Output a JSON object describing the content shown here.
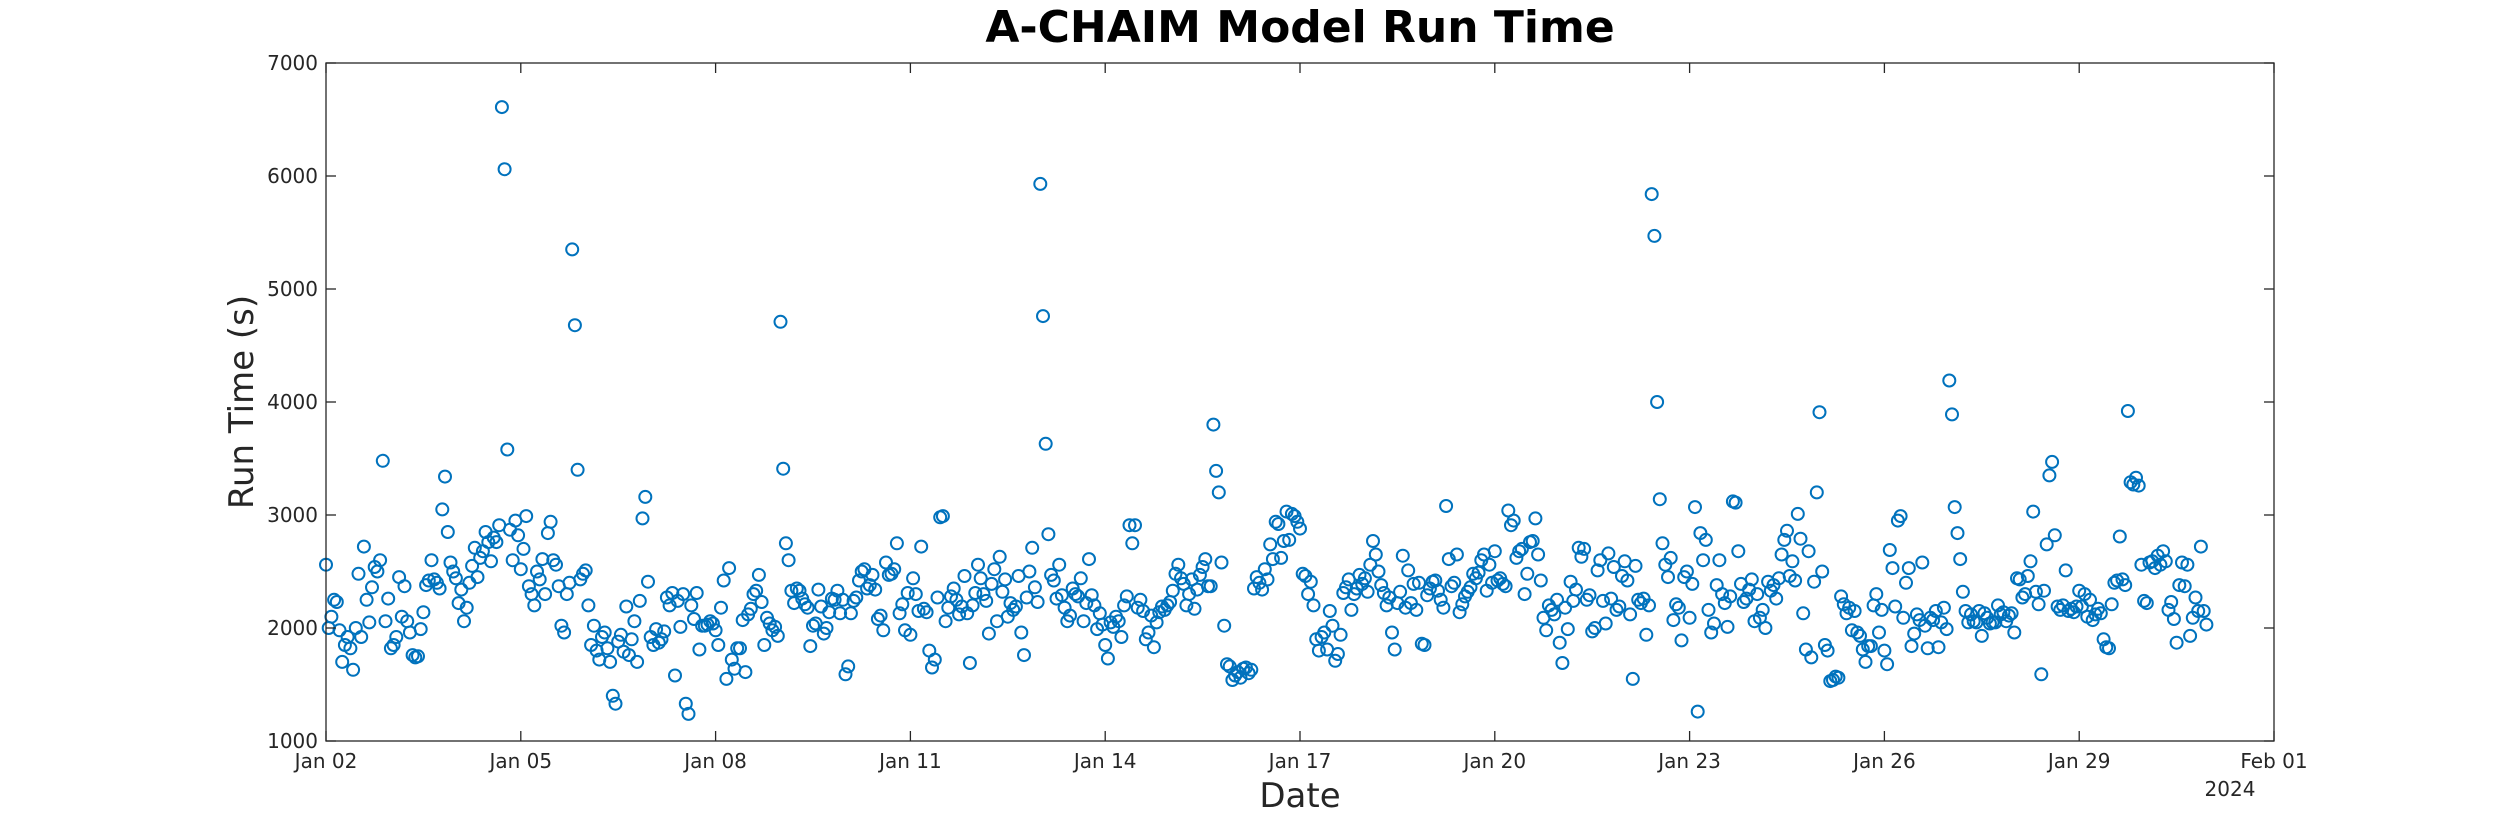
{
  "chart_data": {
    "type": "scatter",
    "title": "A-CHAIM Model Run Time",
    "xlabel": "Date",
    "ylabel": "Run Time (s)",
    "x_secondary_label": "2024",
    "x_range": [
      "2024-01-02",
      "2024-02-01"
    ],
    "xlim_days": [
      0,
      30
    ],
    "ylim": [
      1000,
      7000
    ],
    "x_ticks": [
      "Jan 02",
      "Jan 05",
      "Jan 08",
      "Jan 11",
      "Jan 14",
      "Jan 17",
      "Jan 20",
      "Jan 23",
      "Jan 26",
      "Jan 29",
      "Feb 01"
    ],
    "y_ticks": [
      "1000",
      "2000",
      "3000",
      "4000",
      "5000",
      "6000",
      "7000"
    ],
    "grid": false,
    "marker": "open-circle",
    "marker_color": "#0072BD",
    "points_per_day": 24,
    "values": [
      2560,
      2000,
      2100,
      2250,
      2230,
      1980,
      1700,
      1850,
      1920,
      1820,
      1630,
      2000,
      2480,
      1920,
      2720,
      2250,
      2050,
      2360,
      2540,
      2500,
      2600,
      3480,
      2060,
      2260,
      1820,
      1850,
      1920,
      2450,
      2100,
      2370,
      2060,
      1960,
      1760,
      1740,
      1750,
      1990,
      2140,
      2380,
      2420,
      2600,
      2430,
      2400,
      2350,
      3050,
      3340,
      2850,
      2580,
      2500,
      2440,
      2220,
      2340,
      2060,
      2180,
      2400,
      2550,
      2710,
      2450,
      2620,
      2680,
      2850,
      2760,
      2590,
      2800,
      2760,
      2910,
      6610,
      6060,
      3580,
      2870,
      2600,
      2950,
      2820,
      2520,
      2700,
      2990,
      2370,
      2300,
      2200,
      2500,
      2430,
      2610,
      2300,
      2840,
      2940,
      2600,
      2560,
      2370,
      2020,
      1960,
      2300,
      2400,
      5350,
      4680,
      3400,
      2430,
      2480,
      2510,
      2200,
      1850,
      2020,
      1800,
      1720,
      1920,
      1960,
      1820,
      1700,
      1400,
      1330,
      1880,
      1940,
      1790,
      2190,
      1760,
      1900,
      2060,
      1700,
      2240,
      2970,
      3160,
      2410,
      1920,
      1850,
      1990,
      1870,
      1900,
      1970,
      2270,
      2200,
      2310,
      1580,
      2240,
      2010,
      2300,
      1330,
      1240,
      2200,
      2080,
      2310,
      1810,
      2020,
      2020,
      2030,
      2060,
      2040,
      1980,
      1850,
      2180,
      2420,
      1550,
      2530,
      1720,
      1640,
      1820,
      1820,
      2070,
      1610,
      2120,
      2170,
      2300,
      2330,
      2470,
      2230,
      1850,
      2090,
      2040,
      1980,
      2010,
      1930,
      4710,
      3410,
      2750,
      2600,
      2330,
      2220,
      2350,
      2330,
      2260,
      2210,
      2180,
      1840,
      2020,
      2040,
      2340,
      2190,
      1950,
      2000,
      2140,
      2260,
      2250,
      2330,
      2130,
      2250,
      1590,
      1660,
      2130,
      2240,
      2270,
      2420,
      2500,
      2520,
      2350,
      2380,
      2470,
      2340,
      2080,
      2110,
      1980,
      2580,
      2470,
      2480,
      2520,
      2750,
      2130,
      2210,
      1980,
      2310,
      1940,
      2440,
      2300,
      2150,
      2720,
      2170,
      2140,
      1800,
      1650,
      1720,
      2270,
      2980,
      2990,
      2060,
      2180,
      2280,
      2350,
      2250,
      2120,
      2190,
      2460,
      2130,
      1690,
      2200,
      2310,
      2560,
      2440,
      2300,
      2240,
      1950,
      2390,
      2520,
      2060,
      2630,
      2320,
      2430,
      2100,
      2220,
      2160,
      2190,
      2460,
      1960,
      1760,
      2270,
      2500,
      2710,
      2360,
      2230,
      5930,
      4760,
      3630,
      2830,
      2470,
      2420,
      2260,
      2560,
      2290,
      2180,
      2060,
      2110,
      2350,
      2300,
      2280,
      2440,
      2060,
      2220,
      2610,
      2290,
      2200,
      1990,
      2130,
      2030,
      1850,
      1730,
      2050,
      2010,
      2100,
      2060,
      1920,
      2200,
      2280,
      2910,
      2750,
      2910,
      2180,
      2250,
      2150,
      1900,
      1960,
      2110,
      1830,
      2050,
      2140,
      2190,
      2160,
      2200,
      2230,
      2330,
      2480,
      2560,
      2440,
      2390,
      2200,
      2300,
      2430,
      2170,
      2340,
      2470,
      2540,
      2610,
      2370,
      2370,
      3800,
      3390,
      3200,
      2580,
      2020,
      1680,
      1660,
      1540,
      1580,
      1610,
      1560,
      1640,
      1650,
      1600,
      1630,
      2350,
      2450,
      2400,
      2340,
      2520,
      2430,
      2740,
      2610,
      2940,
      2920,
      2620,
      2770,
      3030,
      2780,
      3010,
      2990,
      2940,
      2880,
      2480,
      2460,
      2300,
      2410,
      2200,
      1900,
      1800,
      1920,
      1960,
      1810,
      2150,
      2020,
      1710,
      1770,
      1940,
      2310,
      2360,
      2430,
      2160,
      2300,
      2350,
      2470,
      2390,
      2440,
      2320,
      2560,
      2770,
      2650,
      2500,
      2380,
      2310,
      2200,
      2270,
      1960,
      1810,
      2220,
      2320,
      2640,
      2180,
      2510,
      2220,
      2390,
      2160,
      2400,
      1860,
      1850,
      2290,
      2350,
      2410,
      2420,
      2330,
      2250,
      2180,
      3080,
      2610,
      2370,
      2400,
      2650,
      2140,
      2210,
      2280,
      2320,
      2360,
      2480,
      2440,
      2490,
      2600,
      2650,
      2330,
      2560,
      2400,
      2680,
      2420,
      2440,
      2390,
      2370,
      3040,
      2910,
      2950,
      2620,
      2680,
      2700,
      2300,
      2480,
      2760,
      2770,
      2970,
      2650,
      2420,
      2090,
      1980,
      2200,
      2160,
      2120,
      2250,
      1870,
      1690,
      2180,
      1990,
      2410,
      2240,
      2340,
      2710,
      2630,
      2700,
      2250,
      2290,
      1970,
      2000,
      2510,
      2600,
      2240,
      2040,
      2660,
      2260,
      2540,
      2160,
      2190,
      2460,
      2590,
      2420,
      2120,
      1550,
      2550,
      2250,
      2220,
      2260,
      1940,
      2200,
      5840,
      5470,
      4000,
      3140,
      2750,
      2560,
      2450,
      2620,
      2070,
      2210,
      2180,
      1890,
      2450,
      2500,
      2090,
      2390,
      3070,
      1260,
      2840,
      2600,
      2780,
      2160,
      1960,
      2040,
      2380,
      2600,
      2300,
      2220,
      2010,
      2280,
      3120,
      3110,
      2680,
      2390,
      2230,
      2260,
      2340,
      2430,
      2060,
      2300,
      2090,
      2160,
      2000,
      2410,
      2330,
      2380,
      2260,
      2440,
      2650,
      2780,
      2860,
      2460,
      2590,
      2420,
      3010,
      2790,
      2130,
      1810,
      2680,
      1740,
      2410,
      3200,
      3910,
      2500,
      1850,
      1800,
      1530,
      1540,
      1570,
      1560,
      2280,
      2210,
      2130,
      2180,
      1980,
      2150,
      1960,
      1930,
      1810,
      1700,
      1840,
      1840,
      2200,
      2300,
      1960,
      2160,
      1800,
      1680,
      2690,
      2530,
      2190,
      2950,
      2990,
      2090,
      2400,
      2530,
      1840,
      1950,
      2120,
      2070,
      2580,
      2020,
      1820,
      2090,
      2070,
      2150,
      1830,
      2050,
      2180,
      1990,
      4190,
      3890,
      3070,
      2840,
      2610,
      2320,
      2150,
      2050,
      2120,
      2060,
      2050,
      2150,
      1930,
      2130,
      2090,
      2040,
      2050,
      2050,
      2200,
      2120,
      2140,
      2060,
      2110,
      2130,
      1960,
      2440,
      2430,
      2270,
      2300,
      2460,
      2590,
      3030,
      2320,
      2210,
      1590,
      2330,
      2740,
      3350,
      3470,
      2820,
      2190,
      2160,
      2200,
      2510,
      2150,
      2170,
      2140,
      2190,
      2330,
      2190,
      2300,
      2100,
      2250,
      2070,
      2120,
      2170,
      2130,
      1900,
      1830,
      1820,
      2210,
      2400,
      2420,
      2810,
      2430,
      2380,
      3920,
      3290,
      3270,
      3330,
      3260,
      2560,
      2240,
      2220,
      2580,
      2590,
      2530,
      2640,
      2560,
      2680,
      2590,
      2160,
      2230,
      2080,
      1870,
      2380,
      2580,
      2370,
      2560,
      1930,
      2090,
      2270,
      2150,
      2720,
      2150,
      2030
    ]
  }
}
